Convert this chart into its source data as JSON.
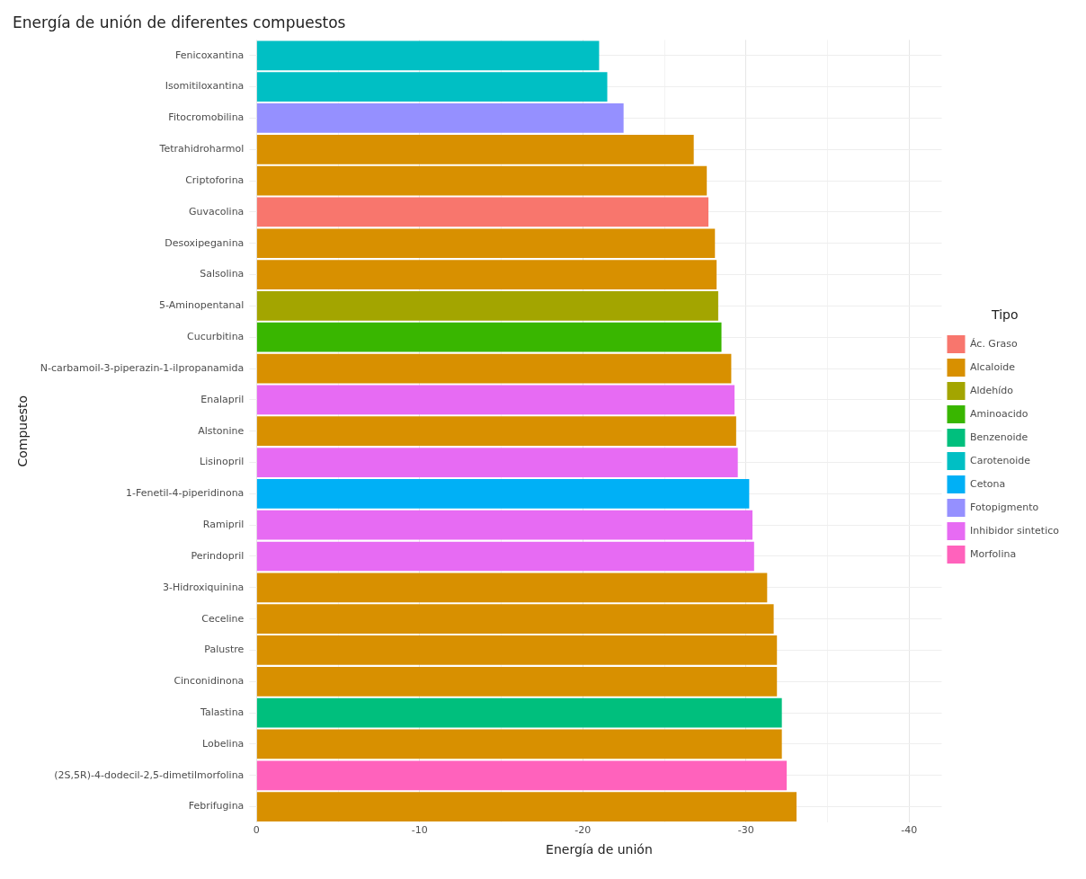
{
  "chart_data": {
    "type": "bar",
    "orientation": "horizontal",
    "title": "Energía de unión de diferentes compuestos",
    "xlabel": "Energía de unión",
    "ylabel": "Compuesto",
    "legend_title": "Tipo",
    "legend": "right",
    "grid": true,
    "categories": [
      "Fenicoxantina",
      "Isomitiloxantina",
      "Fitocromobilina",
      "Tetrahidroharmol",
      "Criptoforina",
      "Guvacolina",
      "Desoxipeganina",
      "Salsolina",
      "5-Aminopentanal",
      "Cucurbitina",
      "N-carbamoil-3-piperazin-1-ilpropanamida",
      "Enalapril",
      "Alstonine",
      "Lisinopril",
      "1-Fenetil-4-piperidinona",
      "Ramipril",
      "Perindopril",
      "3-Hidroxiquinina",
      "Ceceline",
      "Palustre",
      "Cinconidinona",
      "Talastina",
      "Lobelina",
      "(2S,5R)-4-dodecil-2,5-dimetilmorfolina",
      "Febrifugina"
    ],
    "xlim": [
      0,
      -42
    ],
    "xticks": [
      0,
      {
        "value": -5,
        "label": null
      },
      -10,
      {
        "value": -15,
        "label": null
      },
      -20,
      {
        "value": -25,
        "label": null
      },
      -30,
      {
        "value": -35,
        "label": null
      },
      -40
    ],
    "series": [
      {
        "name": "Ác. Graso",
        "color": "#f8766d",
        "values": [
          null,
          null,
          null,
          null,
          null,
          -27.7,
          null,
          null,
          null,
          null,
          null,
          null,
          null,
          null,
          null,
          null,
          null,
          null,
          null,
          null,
          null,
          null,
          null,
          null,
          null
        ]
      },
      {
        "name": "Alcaloide",
        "color": "#d89000",
        "values": [
          null,
          null,
          null,
          -26.8,
          -27.6,
          null,
          -28.1,
          -28.2,
          null,
          null,
          -29.1,
          null,
          -29.4,
          null,
          null,
          null,
          null,
          -31.3,
          -31.7,
          -31.9,
          -31.9,
          null,
          -32.2,
          null,
          -33.1
        ]
      },
      {
        "name": "Aldehído",
        "color": "#a3a500",
        "values": [
          null,
          null,
          null,
          null,
          null,
          null,
          null,
          null,
          -28.3,
          null,
          null,
          null,
          null,
          null,
          null,
          null,
          null,
          null,
          null,
          null,
          null,
          null,
          null,
          null,
          null
        ]
      },
      {
        "name": "Aminoacido",
        "color": "#39b600",
        "values": [
          null,
          null,
          null,
          null,
          null,
          null,
          null,
          null,
          null,
          -28.5,
          null,
          null,
          null,
          null,
          null,
          null,
          null,
          null,
          null,
          null,
          null,
          null,
          null,
          null,
          null
        ]
      },
      {
        "name": "Benzenoide",
        "color": "#00bf7d",
        "values": [
          null,
          null,
          null,
          null,
          null,
          null,
          null,
          null,
          null,
          null,
          null,
          null,
          null,
          null,
          null,
          null,
          null,
          null,
          null,
          null,
          null,
          -32.2,
          null,
          null,
          null
        ]
      },
      {
        "name": "Carotenoide",
        "color": "#00bfc4",
        "values": [
          -21.0,
          -21.5,
          null,
          null,
          null,
          null,
          null,
          null,
          null,
          null,
          null,
          null,
          null,
          null,
          null,
          null,
          null,
          null,
          null,
          null,
          null,
          null,
          null,
          null,
          null
        ]
      },
      {
        "name": "Cetona",
        "color": "#00b0f6",
        "values": [
          null,
          null,
          null,
          null,
          null,
          null,
          null,
          null,
          null,
          null,
          null,
          null,
          null,
          null,
          -30.2,
          null,
          null,
          null,
          null,
          null,
          null,
          null,
          null,
          null,
          null
        ]
      },
      {
        "name": "Fotopigmento",
        "color": "#9590ff",
        "values": [
          null,
          null,
          -22.5,
          null,
          null,
          null,
          null,
          null,
          null,
          null,
          null,
          null,
          null,
          null,
          null,
          null,
          null,
          null,
          null,
          null,
          null,
          null,
          null,
          null,
          null
        ]
      },
      {
        "name": "Inhibidor sintetico",
        "color": "#e76bf3",
        "values": [
          null,
          null,
          null,
          null,
          null,
          null,
          null,
          null,
          null,
          null,
          null,
          -29.3,
          null,
          -29.5,
          null,
          -30.4,
          -30.5,
          null,
          null,
          null,
          null,
          null,
          null,
          null,
          null
        ]
      },
      {
        "name": "Morfolina",
        "color": "#ff62bc",
        "values": [
          null,
          null,
          null,
          null,
          null,
          null,
          null,
          null,
          null,
          null,
          null,
          null,
          null,
          null,
          null,
          null,
          null,
          null,
          null,
          null,
          null,
          null,
          null,
          -32.5,
          null
        ]
      }
    ]
  }
}
